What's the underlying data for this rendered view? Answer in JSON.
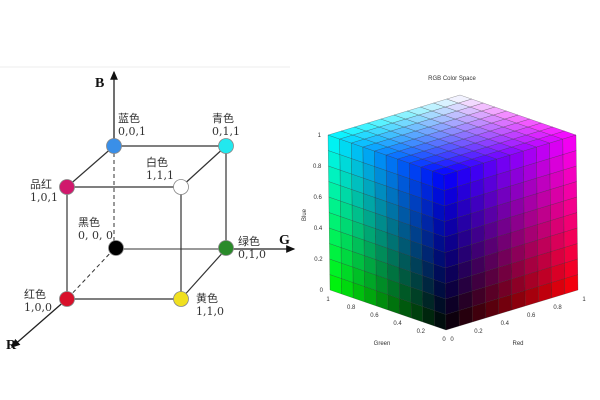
{
  "left_diagram": {
    "axes": {
      "b": "B",
      "g": "G",
      "r": "R"
    },
    "vertices": [
      {
        "name": "蓝色",
        "coords": "0,0,1",
        "color": "#3a8fe8"
      },
      {
        "name": "青色",
        "coords": "0,1,1",
        "color": "#22e8ee"
      },
      {
        "name": "品红",
        "coords": "1,0,1",
        "color": "#d0186c"
      },
      {
        "name": "白色",
        "coords": "1,1,1",
        "color": "#ffffff"
      },
      {
        "name": "黑色",
        "coords": "0, 0, 0",
        "color": "#000000"
      },
      {
        "name": "绿色",
        "coords": "0,1,0",
        "color": "#2a8a2a"
      },
      {
        "name": "红色",
        "coords": "1,0,0",
        "color": "#d8102a"
      },
      {
        "name": "黄色",
        "coords": "1,1,0",
        "color": "#f0e020"
      }
    ]
  },
  "right_chart": {
    "title": "RGB Color Space",
    "blue_label": "Blue",
    "green_label": "Green",
    "red_label": "Red",
    "blue_ticks": [
      "0",
      "0.2",
      "0.4",
      "0.6",
      "0.8",
      "1"
    ],
    "green_ticks": [
      "1",
      "0.8",
      "0.6",
      "0.4",
      "0.2",
      "0"
    ],
    "red_ticks": [
      "0",
      "0.2",
      "0.4",
      "0.6",
      "0.8",
      "1"
    ],
    "grid_divisions": 10
  }
}
